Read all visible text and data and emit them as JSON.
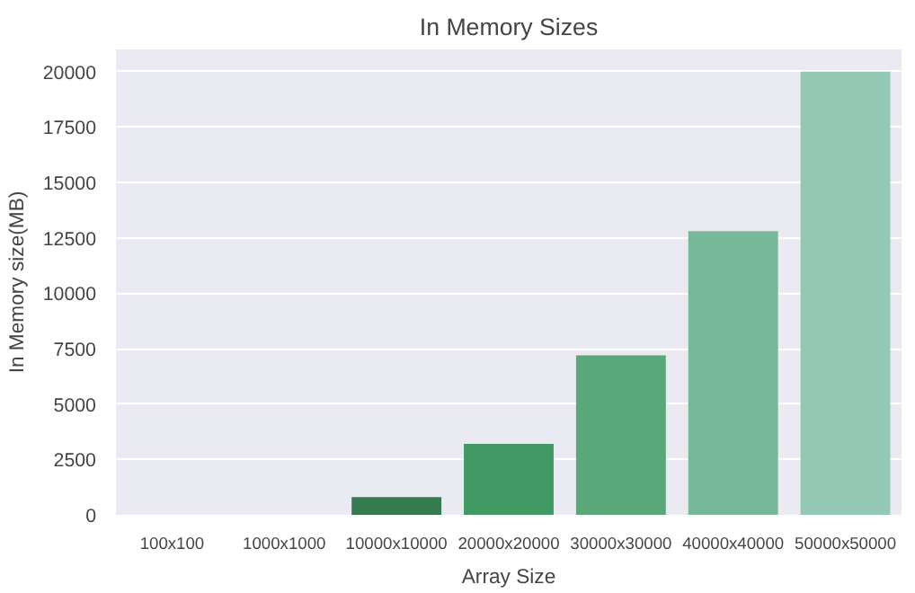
{
  "chart_data": {
    "type": "bar",
    "title": "In Memory Sizes",
    "xlabel": "Array Size",
    "ylabel": "In Memory size(MB)",
    "categories": [
      "100x100",
      "1000x1000",
      "10000x10000",
      "20000x20000",
      "30000x30000",
      "40000x40000",
      "50000x50000"
    ],
    "values": [
      0,
      0,
      800,
      3200,
      7200,
      12800,
      20000
    ],
    "colors": [
      "#1e5436",
      "#2a6a44",
      "#367b50",
      "#419a64",
      "#5aa87a",
      "#77b89a",
      "#93c9b4"
    ],
    "ylim": [
      0,
      21000
    ],
    "yticks": [
      0,
      2500,
      5000,
      7500,
      10000,
      12500,
      15000,
      17500,
      20000
    ],
    "grid": "y"
  }
}
